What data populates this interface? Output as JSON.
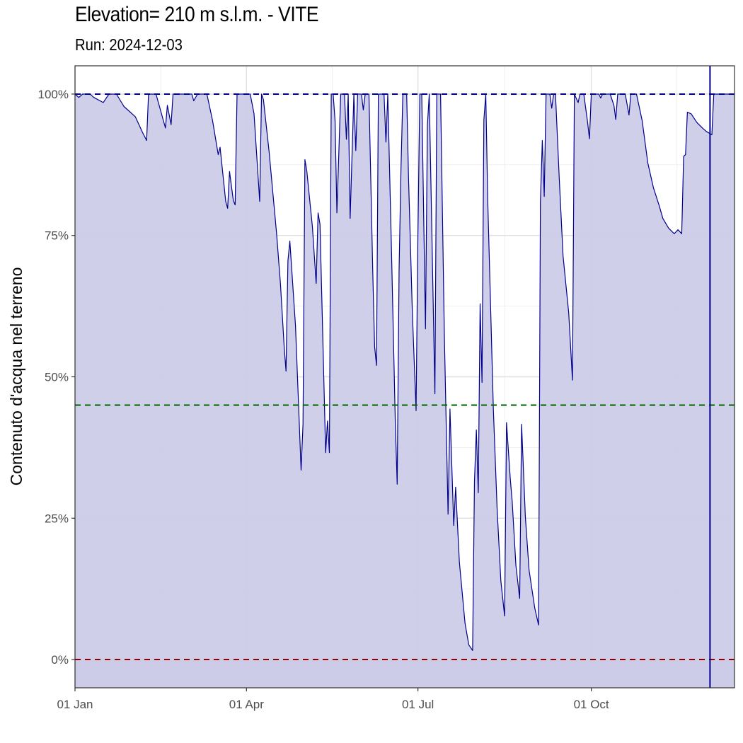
{
  "title": "Elevation= 210 m s.l.m. - VITE",
  "subtitle": "Run: 2024-12-03",
  "chart_data": {
    "type": "area",
    "title": "Elevation= 210 m s.l.m. - VITE",
    "subtitle": "Run: 2024-12-03",
    "xlabel": "",
    "ylabel": "Contenuto d'acqua nel terreno",
    "xlim": [
      "2024-01-01",
      "2024-12-16"
    ],
    "ylim": [
      -5,
      105
    ],
    "x_ticks": [
      {
        "date": "2024-01-01",
        "label": "01 Jan"
      },
      {
        "date": "2024-04-01",
        "label": "01 Apr"
      },
      {
        "date": "2024-07-01",
        "label": "01 Jul"
      },
      {
        "date": "2024-10-01",
        "label": "01 Oct"
      }
    ],
    "y_ticks": [
      {
        "value": 0,
        "label": "0%"
      },
      {
        "value": 25,
        "label": "25%"
      },
      {
        "value": 50,
        "label": "50%"
      },
      {
        "value": 75,
        "label": "75%"
      },
      {
        "value": 100,
        "label": "100%"
      }
    ],
    "grid": true,
    "colors": {
      "line": "#00008B",
      "fill": "#CCCCE8",
      "ref_top": "#00008B",
      "ref_mid": "#006400",
      "ref_bottom": "#8B0000",
      "vline": "#00008B"
    },
    "hlines": [
      {
        "value": 100,
        "color": "#00008B",
        "style": "dashed"
      },
      {
        "value": 45,
        "color": "#006400",
        "style": "dashed"
      },
      {
        "value": 0,
        "color": "#8B0000",
        "style": "dashed"
      }
    ],
    "vline": {
      "date": "2024-12-03",
      "color": "#00008B",
      "style": "solid"
    },
    "series": [
      {
        "points": [
          [
            "2024-01-01",
            100
          ],
          [
            "2024-01-03",
            99.4
          ],
          [
            "2024-01-05",
            100
          ],
          [
            "2024-01-09",
            100
          ],
          [
            "2024-01-11",
            99.4
          ],
          [
            "2024-01-16",
            98.5
          ],
          [
            "2024-01-19",
            100
          ],
          [
            "2024-01-23",
            100
          ],
          [
            "2024-01-27",
            97.8
          ],
          [
            "2024-02-02",
            96
          ],
          [
            "2024-02-06",
            93.1
          ],
          [
            "2024-02-08",
            91.8
          ],
          [
            "2024-02-09",
            100
          ],
          [
            "2024-02-13",
            100
          ],
          [
            "2024-02-18",
            94
          ],
          [
            "2024-02-19",
            98
          ],
          [
            "2024-02-21",
            94.6
          ],
          [
            "2024-02-22",
            100
          ],
          [
            "2024-03-03",
            100
          ],
          [
            "2024-03-04",
            98.8
          ],
          [
            "2024-03-06",
            100
          ],
          [
            "2024-03-11",
            100
          ],
          [
            "2024-03-14",
            95.3
          ],
          [
            "2024-03-17",
            89.3
          ],
          [
            "2024-03-18",
            90.6
          ],
          [
            "2024-03-21",
            81
          ],
          [
            "2024-03-22",
            79.8
          ],
          [
            "2024-03-23",
            86.3
          ],
          [
            "2024-03-25",
            81.2
          ],
          [
            "2024-03-26",
            80.4
          ],
          [
            "2024-03-27",
            100
          ],
          [
            "2024-04-03",
            100
          ],
          [
            "2024-04-05",
            96.5
          ],
          [
            "2024-04-08",
            81
          ],
          [
            "2024-04-09",
            100
          ],
          [
            "2024-04-10",
            99
          ],
          [
            "2024-04-13",
            89.8
          ],
          [
            "2024-04-17",
            75.3
          ],
          [
            "2024-04-19",
            66.5
          ],
          [
            "2024-04-21",
            55.3
          ],
          [
            "2024-04-22",
            51
          ],
          [
            "2024-04-23",
            70.5
          ],
          [
            "2024-04-24",
            74
          ],
          [
            "2024-04-27",
            59
          ],
          [
            "2024-04-30",
            33.5
          ],
          [
            "2024-05-01",
            41.6
          ],
          [
            "2024-05-02",
            88.4
          ],
          [
            "2024-05-03",
            86.5
          ],
          [
            "2024-05-06",
            76.5
          ],
          [
            "2024-05-08",
            66.5
          ],
          [
            "2024-05-09",
            79
          ],
          [
            "2024-05-10",
            77
          ],
          [
            "2024-05-13",
            36.6
          ],
          [
            "2024-05-14",
            42.2
          ],
          [
            "2024-05-15",
            36.6
          ],
          [
            "2024-05-16",
            100
          ],
          [
            "2024-05-17",
            100
          ],
          [
            "2024-05-18",
            95.3
          ],
          [
            "2024-05-19",
            79
          ],
          [
            "2024-05-21",
            100
          ],
          [
            "2024-05-23",
            100
          ],
          [
            "2024-05-24",
            92
          ],
          [
            "2024-05-25",
            100
          ],
          [
            "2024-05-26",
            78
          ],
          [
            "2024-05-28",
            100
          ],
          [
            "2024-05-29",
            90
          ],
          [
            "2024-05-30",
            100
          ],
          [
            "2024-06-01",
            100
          ],
          [
            "2024-06-02",
            97.2
          ],
          [
            "2024-06-03",
            100
          ],
          [
            "2024-06-05",
            100
          ],
          [
            "2024-06-07",
            69
          ],
          [
            "2024-06-08",
            55.3
          ],
          [
            "2024-06-09",
            52
          ],
          [
            "2024-06-10",
            100
          ],
          [
            "2024-06-13",
            100
          ],
          [
            "2024-06-14",
            91.5
          ],
          [
            "2024-06-15",
            100
          ],
          [
            "2024-06-17",
            71.5
          ],
          [
            "2024-06-19",
            41.6
          ],
          [
            "2024-06-20",
            31
          ],
          [
            "2024-06-21",
            69
          ],
          [
            "2024-06-22",
            87
          ],
          [
            "2024-06-23",
            100
          ],
          [
            "2024-06-25",
            100
          ],
          [
            "2024-06-26",
            85.3
          ],
          [
            "2024-06-28",
            61.5
          ],
          [
            "2024-06-30",
            44
          ],
          [
            "2024-07-01",
            75.3
          ],
          [
            "2024-07-02",
            100
          ],
          [
            "2024-07-03",
            100
          ],
          [
            "2024-07-05",
            58.5
          ],
          [
            "2024-07-06",
            94.4
          ],
          [
            "2024-07-07",
            100
          ],
          [
            "2024-07-10",
            47
          ],
          [
            "2024-07-11",
            100
          ],
          [
            "2024-07-13",
            100
          ],
          [
            "2024-07-15",
            57.8
          ],
          [
            "2024-07-17",
            25.7
          ],
          [
            "2024-07-18",
            44.3
          ],
          [
            "2024-07-20",
            23.7
          ],
          [
            "2024-07-21",
            30.5
          ],
          [
            "2024-07-23",
            17.2
          ],
          [
            "2024-07-26",
            6.4
          ],
          [
            "2024-07-28",
            2.6
          ],
          [
            "2024-07-30",
            1.6
          ],
          [
            "2024-07-31",
            31.5
          ],
          [
            "2024-08-01",
            40.6
          ],
          [
            "2024-08-02",
            29.5
          ],
          [
            "2024-08-03",
            62.9
          ],
          [
            "2024-08-04",
            49
          ],
          [
            "2024-08-05",
            95.4
          ],
          [
            "2024-08-06",
            100
          ],
          [
            "2024-08-07",
            81.5
          ],
          [
            "2024-08-10",
            44.3
          ],
          [
            "2024-08-12",
            26.7
          ],
          [
            "2024-08-14",
            13.9
          ],
          [
            "2024-08-16",
            7.7
          ],
          [
            "2024-08-17",
            41.9
          ],
          [
            "2024-08-19",
            32
          ],
          [
            "2024-08-20",
            28
          ],
          [
            "2024-08-22",
            16.6
          ],
          [
            "2024-08-24",
            10.8
          ],
          [
            "2024-08-25",
            41.6
          ],
          [
            "2024-08-27",
            25.3
          ],
          [
            "2024-08-29",
            15.8
          ],
          [
            "2024-09-01",
            9.1
          ],
          [
            "2024-09-03",
            6.1
          ],
          [
            "2024-09-04",
            80.9
          ],
          [
            "2024-09-05",
            91.8
          ],
          [
            "2024-09-06",
            81.9
          ],
          [
            "2024-09-07",
            100
          ],
          [
            "2024-09-09",
            100
          ],
          [
            "2024-09-10",
            97.5
          ],
          [
            "2024-09-11",
            100
          ],
          [
            "2024-09-12",
            100
          ],
          [
            "2024-09-14",
            84.9
          ],
          [
            "2024-09-16",
            71.4
          ],
          [
            "2024-09-19",
            61.3
          ],
          [
            "2024-09-21",
            49.4
          ],
          [
            "2024-09-22",
            100
          ],
          [
            "2024-09-24",
            98.5
          ],
          [
            "2024-09-25",
            100
          ],
          [
            "2024-09-27",
            100
          ],
          [
            "2024-09-29",
            95.1
          ],
          [
            "2024-09-30",
            92.1
          ],
          [
            "2024-10-01",
            100
          ],
          [
            "2024-10-05",
            100
          ],
          [
            "2024-10-06",
            99.3
          ],
          [
            "2024-10-07",
            100
          ],
          [
            "2024-10-11",
            100
          ],
          [
            "2024-10-13",
            98
          ],
          [
            "2024-10-14",
            95.5
          ],
          [
            "2024-10-15",
            100
          ],
          [
            "2024-10-19",
            100
          ],
          [
            "2024-10-21",
            96.3
          ],
          [
            "2024-10-22",
            100
          ],
          [
            "2024-10-25",
            100
          ],
          [
            "2024-10-28",
            95.3
          ],
          [
            "2024-10-31",
            87.8
          ],
          [
            "2024-11-03",
            83.4
          ],
          [
            "2024-11-06",
            80.3
          ],
          [
            "2024-11-08",
            78
          ],
          [
            "2024-11-11",
            76.3
          ],
          [
            "2024-11-14",
            75.3
          ],
          [
            "2024-11-16",
            76
          ],
          [
            "2024-11-18",
            75.3
          ],
          [
            "2024-11-19",
            89
          ],
          [
            "2024-11-20",
            89.3
          ],
          [
            "2024-11-21",
            96.8
          ],
          [
            "2024-11-23",
            96.5
          ],
          [
            "2024-11-26",
            95
          ],
          [
            "2024-11-29",
            94
          ],
          [
            "2024-12-01",
            93.4
          ],
          [
            "2024-12-04",
            92.8
          ],
          [
            "2024-12-05",
            100
          ],
          [
            "2024-12-08",
            100
          ],
          [
            "2024-12-16",
            100
          ]
        ]
      }
    ]
  }
}
